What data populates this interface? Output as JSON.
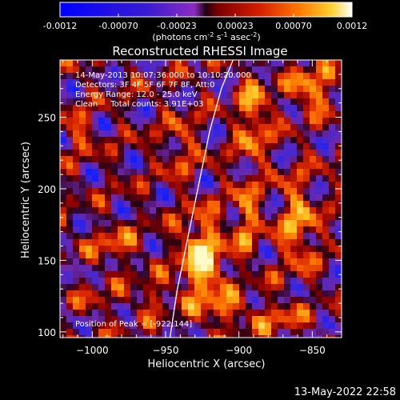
{
  "colorbar": {
    "ticks": [
      "-0.0012",
      "-0.00070",
      "-0.00023",
      "0.00023",
      "0.00070",
      "0.0012"
    ],
    "units_label_parts": [
      "(photons cm",
      "-2",
      " s",
      "-1",
      " asec",
      "-2",
      ")"
    ]
  },
  "footer": {
    "timestamp": "13-May-2022 22:58"
  },
  "chart_data": {
    "type": "heatmap",
    "title": "Reconstructed RHESSI Image",
    "xlabel": "Heliocentric X (arcsec)",
    "ylabel": "Heliocentric Y (arcsec)",
    "xlim": [
      -1022,
      -830
    ],
    "ylim": [
      96,
      290
    ],
    "xticks": [
      -1000,
      -950,
      -900,
      -850
    ],
    "xtick_labels": [
      "−1000",
      "−950",
      "−900",
      "−850"
    ],
    "yticks": [
      100,
      150,
      200,
      250
    ],
    "ytick_labels": [
      "100",
      "150",
      "200",
      "250"
    ],
    "colorscale_range": [
      -0.0012,
      0.0012
    ],
    "annotations": [
      "14-May-2013 10:07:36.000 to 10:10:20.000",
      "Detectors: 3F 4F 5F 6F 7F 8F, Att:0",
      "Energy Range: 12.0 - 25.0 keV",
      "Clean     Total counts: 3.91E+03"
    ],
    "peak_label": "Position of Peak = [-922,144]",
    "peak": [
      -922,
      144
    ],
    "limb_curve": [
      [
        -947,
        96
      ],
      [
        -942,
        130
      ],
      [
        -936,
        160
      ],
      [
        -928,
        200
      ],
      [
        -920,
        240
      ],
      [
        -912,
        270
      ],
      [
        -904,
        290
      ]
    ]
  }
}
